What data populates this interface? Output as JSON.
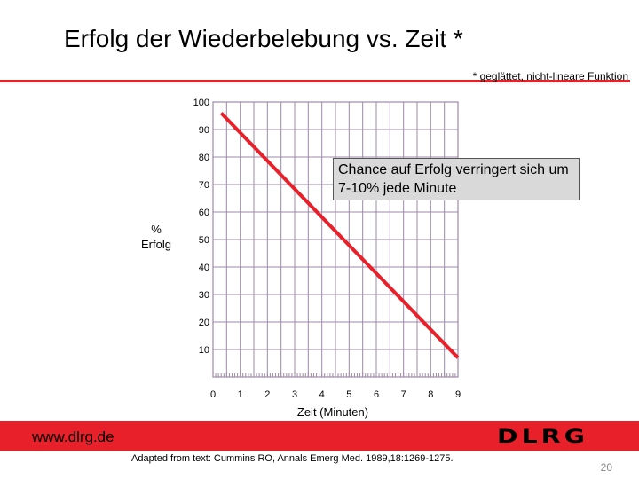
{
  "slide": {
    "title": "Erfolg der Wiederbelebung vs. Zeit *",
    "footnote": "* geglättet, nicht-lineare Funktion",
    "annotation": "Chance auf Erfolg verringert sich um 7-10% jede Minute",
    "source": "Adapted from text: Cummins RO, Annals Emerg Med. 1989,18:1269-1275.",
    "page_number": "20",
    "footer_url": "www.dlrg.de",
    "logo": "DLRG"
  },
  "colors": {
    "accent": "#e8202a",
    "grid": "#9d8aa8",
    "line": "#e8202a"
  },
  "chart_data": {
    "type": "line",
    "title": "Erfolg der Wiederbelebung vs. Zeit *",
    "xlabel": "Zeit (Minuten)",
    "ylabel_top": "%",
    "ylabel_bottom": "Erfolg",
    "xlim": [
      0,
      9
    ],
    "ylim": [
      0,
      100
    ],
    "x_ticks": [
      0,
      1,
      2,
      3,
      4,
      5,
      6,
      7,
      8,
      9
    ],
    "y_ticks": [
      10,
      20,
      30,
      40,
      50,
      60,
      70,
      80,
      90,
      100
    ],
    "grid": true,
    "series": [
      {
        "x": [
          0.3,
          9
        ],
        "y": [
          96,
          7
        ]
      }
    ]
  }
}
